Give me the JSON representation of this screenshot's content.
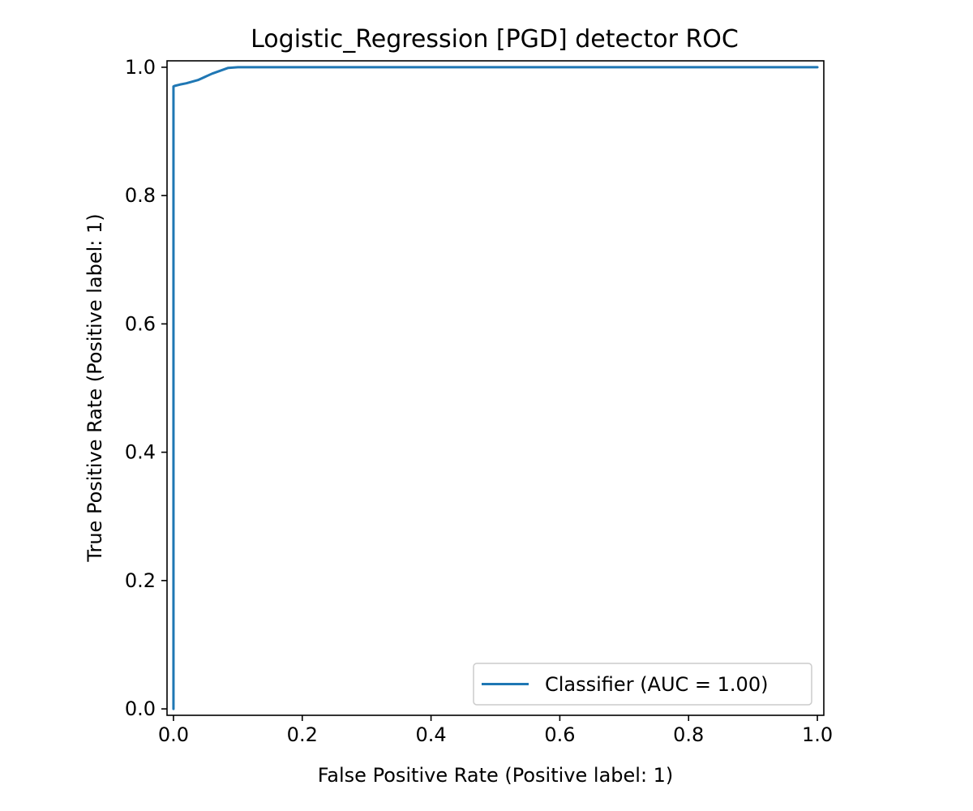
{
  "chart_data": {
    "type": "line",
    "title": "Logistic_Regression [PGD] detector ROC",
    "xlabel": "False Positive Rate (Positive label: 1)",
    "ylabel": "True Positive Rate (Positive label: 1)",
    "xlim": [
      -0.01,
      1.01
    ],
    "ylim": [
      -0.01,
      1.01
    ],
    "xticks": [
      "0.0",
      "0.2",
      "0.4",
      "0.6",
      "0.8",
      "1.0"
    ],
    "yticks": [
      "0.0",
      "0.2",
      "0.4",
      "0.6",
      "0.8",
      "1.0"
    ],
    "grid": false,
    "legend_position": "lower right",
    "series": [
      {
        "name": "Classifier (AUC = 1.00)",
        "color": "#1f77b4",
        "x": [
          0.0,
          0.0,
          0.002,
          0.01,
          0.02,
          0.038,
          0.06,
          0.085,
          0.1,
          0.15,
          0.3,
          0.6,
          1.0
        ],
        "y": [
          0.0,
          0.97,
          0.971,
          0.973,
          0.975,
          0.98,
          0.99,
          0.999,
          1.0,
          1.0,
          1.0,
          1.0,
          1.0
        ]
      }
    ]
  }
}
